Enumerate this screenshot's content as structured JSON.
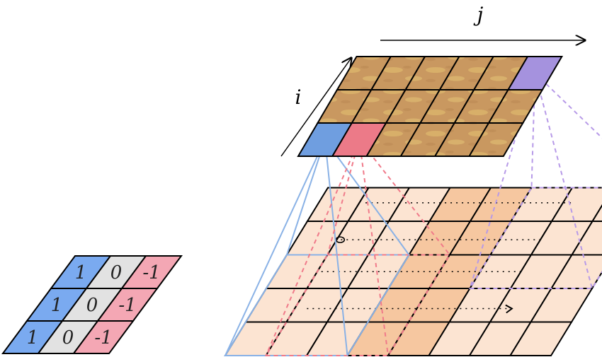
{
  "labels": {
    "i": "i",
    "j": "j"
  },
  "kernel": {
    "rows": [
      [
        "1",
        "0",
        "-1"
      ],
      [
        "1",
        "0",
        "-1"
      ],
      [
        "1",
        "0",
        "-1"
      ]
    ],
    "column_colors": [
      "#7aaaf0",
      "#e2e2e2",
      "#f4a7b4"
    ]
  },
  "input_grid": {
    "rows": 5,
    "cols": 8,
    "colors": {
      "light": "#fce4d2",
      "dark": "#f6c7a0",
      "line": "#000000"
    },
    "dark_columns": [
      3,
      4
    ]
  },
  "output_grid": {
    "rows": 3,
    "cols": 6,
    "colors": {
      "texture_base": "#c99860",
      "texture_light": "#e4c070",
      "blue_cell": "#6f9ee0",
      "red_cell": "#ec7a88",
      "purple_cell": "#a592de"
    }
  },
  "projection_colors": {
    "blue": "#8ab2e6",
    "red": "#f07a8a",
    "purple": "#b79ae8"
  }
}
